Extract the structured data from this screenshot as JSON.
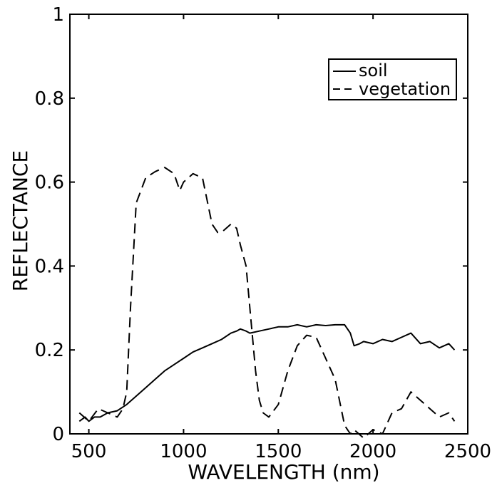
{
  "chart_data": {
    "type": "line",
    "title": "",
    "xlabel": "WAVELENGTH (nm)",
    "ylabel": "REFLECTANCE",
    "xlim": [
      400,
      2500
    ],
    "ylim": [
      0,
      1
    ],
    "xticks": [
      500,
      1000,
      1500,
      2000,
      2500
    ],
    "xtick_labels": [
      "500",
      "1000",
      "1500",
      "2000",
      "2500"
    ],
    "yticks": [
      0,
      0.2,
      0.4,
      0.6,
      0.8,
      1
    ],
    "ytick_labels": [
      "0",
      "0.2",
      "0.4",
      "0.6",
      "0.8",
      "1"
    ],
    "grid": false,
    "legend_position": "top-right",
    "series": [
      {
        "name": "soil",
        "style": "solid",
        "color": "#000000",
        "x": [
          450,
          480,
          500,
          530,
          560,
          600,
          650,
          700,
          750,
          800,
          850,
          900,
          950,
          1000,
          1050,
          1100,
          1150,
          1200,
          1250,
          1280,
          1300,
          1330,
          1350,
          1400,
          1450,
          1500,
          1550,
          1600,
          1650,
          1700,
          1750,
          1800,
          1850,
          1880,
          1900,
          1930,
          1950,
          2000,
          2050,
          2100,
          2150,
          2200,
          2250,
          2300,
          2350,
          2400,
          2430
        ],
        "y": [
          0.03,
          0.04,
          0.03,
          0.04,
          0.04,
          0.05,
          0.055,
          0.07,
          0.09,
          0.11,
          0.13,
          0.15,
          0.165,
          0.18,
          0.195,
          0.205,
          0.215,
          0.225,
          0.24,
          0.245,
          0.25,
          0.245,
          0.24,
          0.245,
          0.25,
          0.255,
          0.255,
          0.26,
          0.255,
          0.26,
          0.258,
          0.26,
          0.26,
          0.24,
          0.21,
          0.215,
          0.22,
          0.215,
          0.225,
          0.22,
          0.23,
          0.24,
          0.215,
          0.22,
          0.205,
          0.215,
          0.2
        ]
      },
      {
        "name": "vegetation",
        "style": "dashed",
        "color": "#000000",
        "x": [
          450,
          500,
          550,
          600,
          650,
          680,
          700,
          720,
          750,
          800,
          850,
          900,
          950,
          980,
          1000,
          1050,
          1100,
          1150,
          1180,
          1200,
          1250,
          1280,
          1300,
          1330,
          1350,
          1380,
          1400,
          1420,
          1450,
          1500,
          1550,
          1600,
          1650,
          1700,
          1750,
          1800,
          1850,
          1880,
          1900,
          1950,
          2000,
          2050,
          2100,
          2150,
          2200,
          2250,
          2300,
          2350,
          2400,
          2430
        ],
        "y": [
          0.05,
          0.03,
          0.06,
          0.05,
          0.04,
          0.06,
          0.1,
          0.3,
          0.55,
          0.61,
          0.625,
          0.635,
          0.62,
          0.58,
          0.6,
          0.62,
          0.61,
          0.5,
          0.48,
          0.48,
          0.5,
          0.49,
          0.45,
          0.4,
          0.3,
          0.15,
          0.08,
          0.05,
          0.04,
          0.07,
          0.15,
          0.21,
          0.235,
          0.23,
          0.18,
          0.13,
          0.02,
          0.0,
          0.01,
          -0.01,
          0.01,
          0.0,
          0.05,
          0.06,
          0.1,
          0.08,
          0.06,
          0.04,
          0.05,
          0.03
        ]
      }
    ]
  }
}
